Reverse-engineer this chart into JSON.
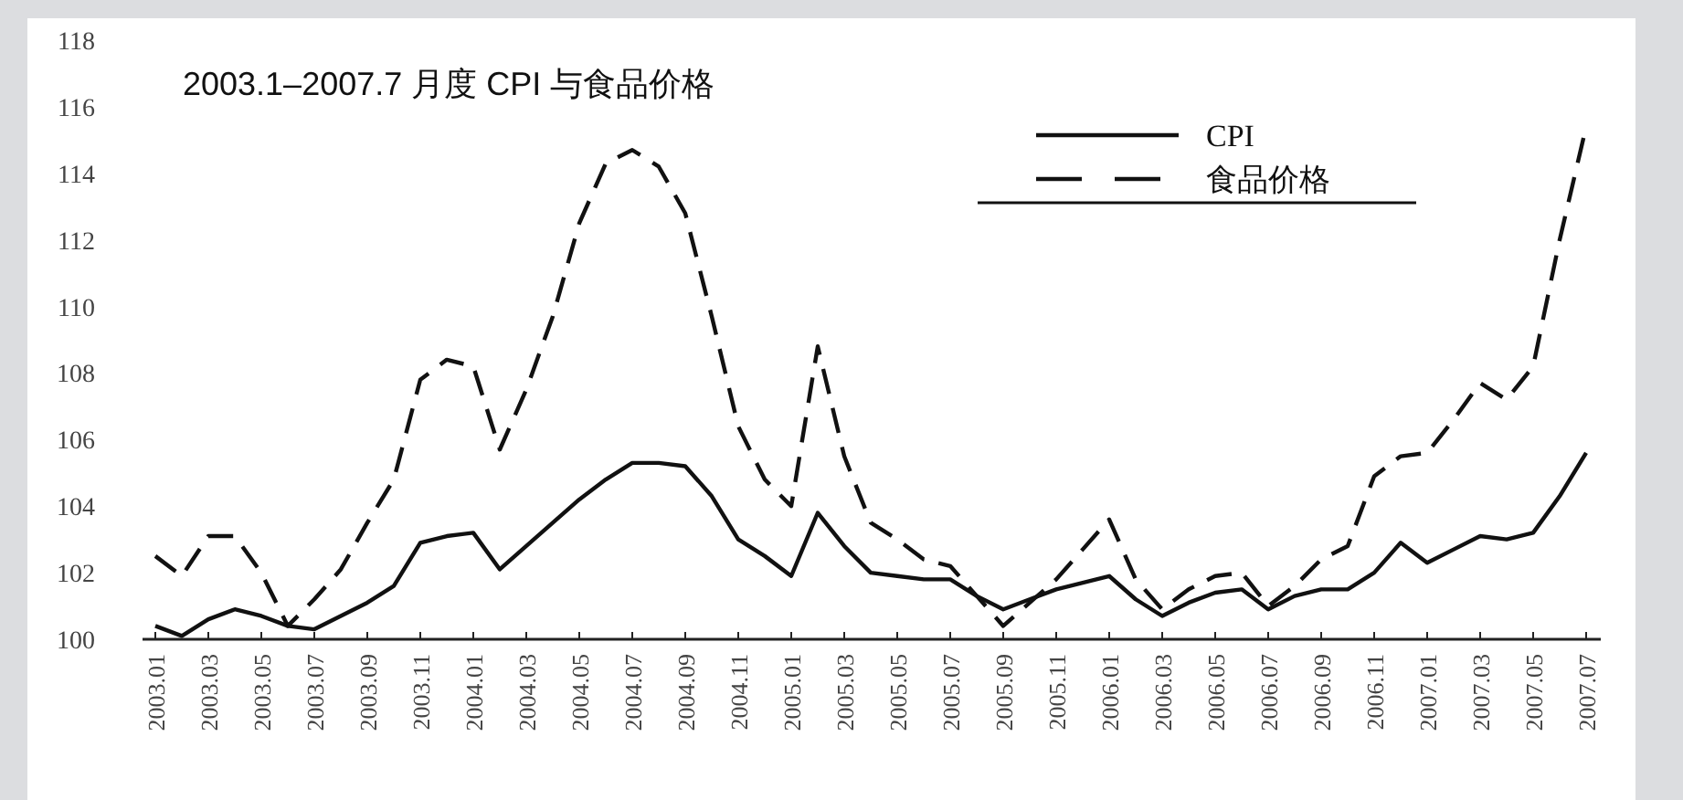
{
  "chart_data": {
    "type": "line",
    "title": "2003.1–2007.7 月度 CPI 与食品价格",
    "categories": [
      "2003.01",
      null,
      "2003.03",
      null,
      "2003.05",
      null,
      "2003.07",
      null,
      "2003.09",
      null,
      "2003.11",
      null,
      "2004.01",
      null,
      "2004.03",
      null,
      "2004.05",
      null,
      "2004.07",
      null,
      "2004.09",
      null,
      "2004.11",
      null,
      "2005.01",
      null,
      "2005.03",
      null,
      "2005.05",
      null,
      "2005.07",
      null,
      "2005.09",
      null,
      "2005.11",
      null,
      "2006.01",
      null,
      "2006.03",
      null,
      "2006.05",
      null,
      "2006.07",
      null,
      "2006.09",
      null,
      "2006.11",
      null,
      "2007.01",
      null,
      "2007.03",
      null,
      "2007.05",
      null,
      "2007.07"
    ],
    "series": [
      {
        "name": "CPI",
        "color": "#111111",
        "line_style": "solid",
        "values": [
          100.4,
          100.1,
          100.6,
          100.9,
          100.7,
          100.4,
          100.3,
          100.7,
          101.1,
          101.6,
          102.9,
          103.1,
          103.2,
          102.1,
          102.8,
          103.5,
          104.2,
          104.8,
          105.3,
          105.3,
          105.2,
          104.3,
          103.0,
          102.5,
          101.9,
          103.8,
          102.8,
          102.0,
          101.9,
          101.8,
          101.8,
          101.3,
          100.9,
          101.2,
          101.5,
          101.7,
          101.9,
          101.2,
          100.7,
          101.1,
          101.4,
          101.5,
          100.9,
          101.3,
          101.5,
          101.5,
          102.0,
          102.9,
          102.3,
          102.7,
          103.1,
          103.0,
          103.2,
          104.3,
          105.6
        ]
      },
      {
        "name": "食品价格",
        "color": "#111111",
        "line_style": "dashed",
        "values": [
          102.5,
          101.9,
          103.1,
          103.1,
          102.0,
          100.4,
          101.2,
          102.1,
          103.5,
          104.8,
          107.8,
          108.4,
          108.2,
          105.7,
          107.5,
          109.7,
          112.5,
          114.3,
          114.7,
          114.2,
          112.8,
          109.7,
          106.4,
          104.8,
          104.0,
          108.8,
          105.5,
          103.5,
          103.0,
          102.4,
          102.2,
          101.3,
          100.4,
          101.1,
          101.8,
          102.7,
          103.6,
          101.8,
          100.9,
          101.5,
          101.9,
          102.0,
          101.0,
          101.6,
          102.4,
          102.8,
          104.9,
          105.5,
          105.6,
          106.6,
          107.7,
          107.2,
          108.2,
          112.0,
          115.4
        ]
      }
    ],
    "ylim": [
      100,
      118
    ],
    "yticks": [
      100,
      102,
      104,
      106,
      108,
      110,
      112,
      114,
      116,
      118
    ],
    "grid": false,
    "legend": "top right",
    "marker": "none"
  }
}
